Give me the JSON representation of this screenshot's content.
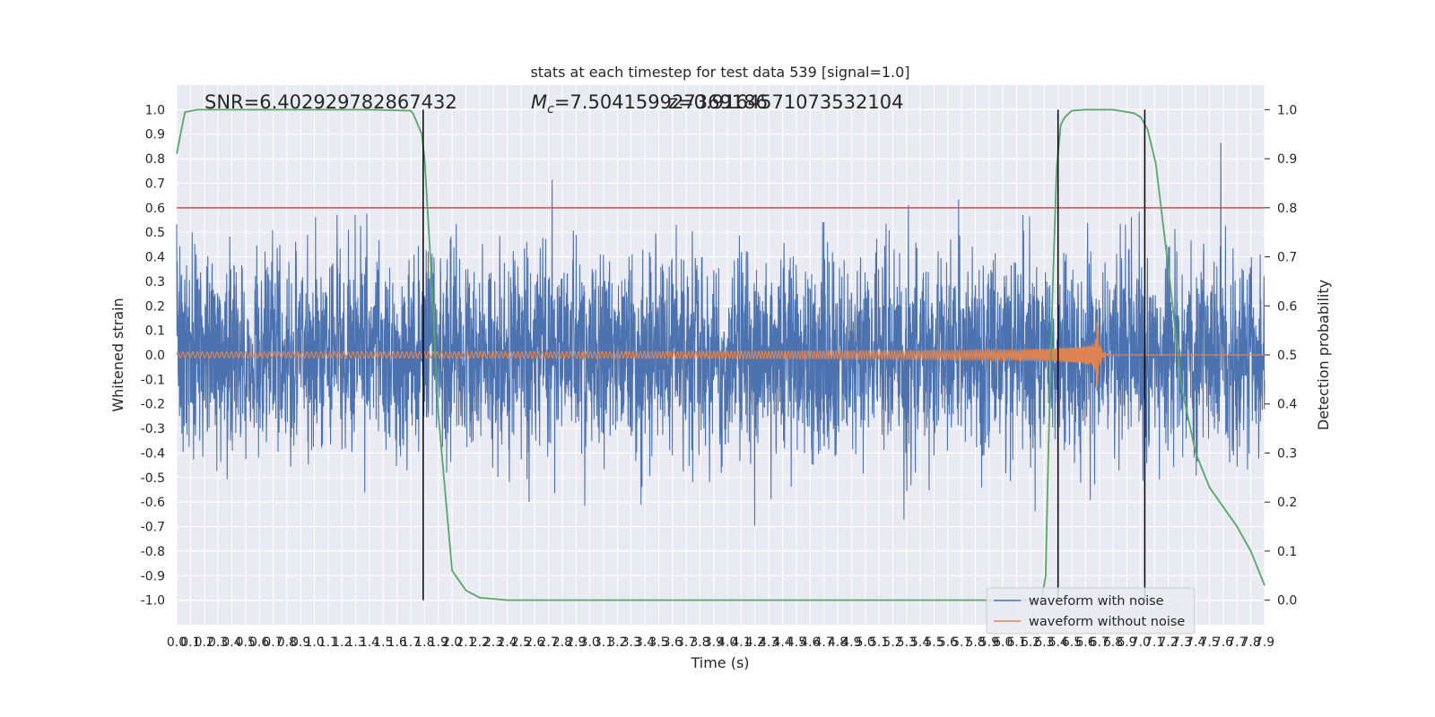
{
  "colors": {
    "background": "#eaeaf2",
    "grid": "#ffffff",
    "noisy": "#4c72b0",
    "clean": "#dd8452",
    "probability": "#55a868",
    "threshold": "#c44e52",
    "marker": "#000000"
  },
  "chart_data": {
    "type": "line",
    "title": "stats at each timestep for test data 539 [signal=1.0]",
    "xlabel": "Time (s)",
    "ylabel": "Whitened strain",
    "y2label": "Detection probability",
    "xlim": [
      0.0,
      7.9
    ],
    "ylim": [
      -1.1,
      1.1
    ],
    "y2lim": [
      -0.05,
      1.05
    ],
    "x_ticks": [
      "0.0",
      "0.1",
      "0.2",
      "0.3",
      "0.4",
      "0.5",
      "0.6",
      "0.7",
      "0.8",
      "0.9",
      "1.0",
      "1.1",
      "1.2",
      "1.3",
      "1.4",
      "1.5",
      "1.6",
      "1.7",
      "1.8",
      "1.9",
      "2.0",
      "2.1",
      "2.2",
      "2.3",
      "2.4",
      "2.5",
      "2.6",
      "2.7",
      "2.8",
      "2.9",
      "3.0",
      "3.1",
      "3.2",
      "3.3",
      "3.4",
      "3.5",
      "3.6",
      "3.7",
      "3.8",
      "3.9",
      "4.0",
      "4.1",
      "4.2",
      "4.3",
      "4.4",
      "4.5",
      "4.6",
      "4.7",
      "4.8",
      "4.9",
      "5.0",
      "5.1",
      "5.2",
      "5.3",
      "5.4",
      "5.5",
      "5.6",
      "5.7",
      "5.8",
      "5.9",
      "6.0",
      "6.1",
      "6.2",
      "6.3",
      "6.4",
      "6.5",
      "6.6",
      "6.7",
      "6.8",
      "6.9",
      "7.0",
      "7.1",
      "7.2",
      "7.3",
      "7.4",
      "7.5",
      "7.6",
      "7.7",
      "7.8",
      "7.9"
    ],
    "y_ticks": [
      "-1.0",
      "-0.9",
      "-0.8",
      "-0.7",
      "-0.6",
      "-0.5",
      "-0.4",
      "-0.3",
      "-0.2",
      "-0.1",
      "0.0",
      "0.1",
      "0.2",
      "0.3",
      "0.4",
      "0.5",
      "0.6",
      "0.7",
      "0.8",
      "0.9",
      "1.0"
    ],
    "y2_ticks": [
      "0.0",
      "0.1",
      "0.2",
      "0.3",
      "0.4",
      "0.5",
      "0.6",
      "0.7",
      "0.8",
      "0.9",
      "1.0"
    ],
    "series": [
      {
        "name": "waveform with noise",
        "kind": "noise",
        "typical_abs": 0.4,
        "peak_abs": 1.0,
        "color": "#4c72b0"
      },
      {
        "name": "waveform without noise",
        "kind": "chirp",
        "amplitude_start": 0.012,
        "amplitude_peak": 0.17,
        "merger_time": 6.68,
        "ringdown_end": 6.78,
        "color": "#dd8452"
      },
      {
        "name": "",
        "kind": "probability",
        "axis": "right",
        "x": [
          0.0,
          0.06,
          0.15,
          0.3,
          0.6,
          1.0,
          1.4,
          1.7,
          1.72,
          1.78,
          1.8,
          1.85,
          1.9,
          2.0,
          2.1,
          2.2,
          2.4,
          3.0,
          4.0,
          5.0,
          6.0,
          6.28,
          6.31,
          6.33,
          6.36,
          6.39,
          6.42,
          6.45,
          6.5,
          6.6,
          6.8,
          6.95,
          7.0,
          7.05,
          7.11,
          7.2,
          7.3,
          7.4,
          7.5,
          7.6,
          7.7,
          7.8,
          7.9
        ],
        "y": [
          0.91,
          0.995,
          1.0,
          1.0,
          1.0,
          1.0,
          1.0,
          0.998,
          0.99,
          0.95,
          0.9,
          0.66,
          0.38,
          0.06,
          0.02,
          0.005,
          0.0,
          0.0,
          0.0,
          0.0,
          0.0,
          0.0,
          0.05,
          0.3,
          0.62,
          0.88,
          0.97,
          0.985,
          0.998,
          1.0,
          1.0,
          0.993,
          0.985,
          0.96,
          0.89,
          0.68,
          0.43,
          0.3,
          0.23,
          0.19,
          0.15,
          0.1,
          0.03
        ]
      }
    ],
    "threshold_y": 0.8,
    "vertical_markers": [
      1.79,
      6.4,
      7.03
    ],
    "annotations": [
      {
        "text": "SNR=6.402929782867432",
        "x": 0.2
      },
      {
        "text": "=7.504159927369186",
        "label": "M",
        "sub": "c",
        "x": 2.6
      },
      {
        "text": "z=0.9164571073532104",
        "x": 3.6
      }
    ],
    "legend_position": "lower-right",
    "grid": true
  }
}
